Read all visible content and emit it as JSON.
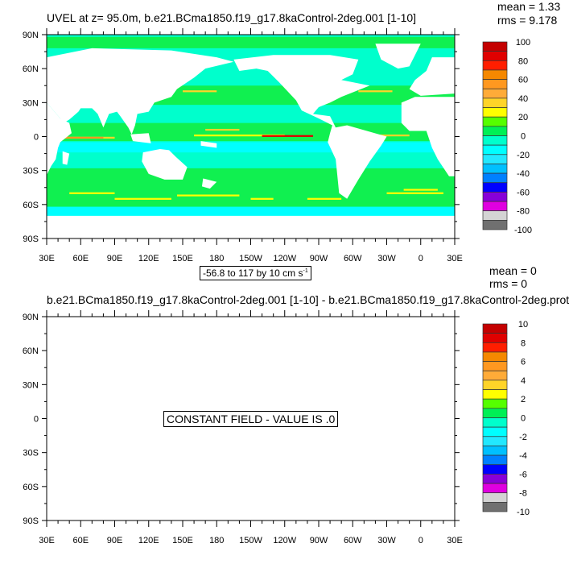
{
  "chart_data": [
    {
      "type": "heatmap",
      "title": "UVEL at z=  95.0m, b.e21.BCma1850.f19_g17.8kaControl-2deg.001 [1-10]",
      "stats": {
        "mean": "mean = 1.33",
        "rms": "rms = 9.178"
      },
      "y_ticks": [
        "90N",
        "60N",
        "30N",
        "0",
        "30S",
        "60S",
        "90S"
      ],
      "x_ticks": [
        "30E",
        "60E",
        "90E",
        "120E",
        "150E",
        "180",
        "150W",
        "120W",
        "90W",
        "60W",
        "30W",
        "0",
        "30E"
      ],
      "contour_info": "-56.8 to 117 by 10 cm s",
      "contour_info_sup": "-1",
      "colorbar_labels": [
        "100",
        "80",
        "60",
        "40",
        "20",
        "0",
        "-20",
        "-40",
        "-60",
        "-80",
        "-100"
      ],
      "value_range": [
        -56.8,
        117
      ],
      "contour_interval": 10,
      "units": "cm s-1"
    },
    {
      "type": "heatmap",
      "title": "b.e21.BCma1850.f19_g17.8kaControl-2deg.001 [1-10] - b.e21.BCma1850.f19_g17.8kaControl-2deg.prot",
      "stats": {
        "mean": "mean = 0",
        "rms": "rms = 0"
      },
      "y_ticks": [
        "90N",
        "60N",
        "30N",
        "0",
        "30S",
        "60S",
        "90S"
      ],
      "x_ticks": [
        "30E",
        "60E",
        "90E",
        "120E",
        "150E",
        "180",
        "150W",
        "120W",
        "90W",
        "60W",
        "30W",
        "0",
        "30E"
      ],
      "constant_field": "CONSTANT FIELD - VALUE IS .0",
      "colorbar_labels": [
        "10",
        "8",
        "6",
        "4",
        "2",
        "0",
        "-2",
        "-4",
        "-6",
        "-8",
        "-10"
      ]
    }
  ],
  "colors": {
    "colorbar": [
      "#c40000",
      "#e00000",
      "#ff1e00",
      "#f58800",
      "#ff9820",
      "#ffab38",
      "#ffd428",
      "#ffff00",
      "#55ff00",
      "#00f055",
      "#00ffcc",
      "#00ffff",
      "#22e8ff",
      "#00c0ff",
      "#0080ff",
      "#0000ff",
      "#8800d8",
      "#e000e0",
      "#d4d4d4",
      "#707070"
    ],
    "ocean_base": "#00ffcc",
    "ocean_green": "#10f050",
    "land": "#ffffff"
  }
}
